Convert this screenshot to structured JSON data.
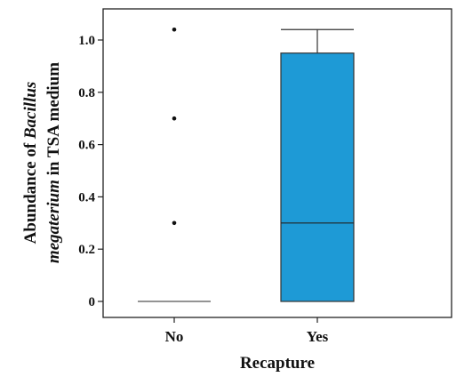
{
  "chart_data": {
    "type": "box",
    "categories": [
      "No",
      "Yes"
    ],
    "xlabel": "Recapture",
    "ylabel_line1": [
      "Abundance of ",
      "Bacillus"
    ],
    "ylabel_line2": [
      "megaterium",
      " in TSA medium"
    ],
    "ylim": [
      -0.05,
      1.1
    ],
    "yticks": [
      0,
      0.2,
      0.4,
      0.6,
      0.8,
      1.0
    ],
    "ytick_labels": [
      "0",
      "0.2",
      "0.4",
      "0.6",
      "0.8",
      "1.0"
    ],
    "series": [
      {
        "category": "No",
        "min": 0,
        "q1": 0,
        "median": 0,
        "q3": 0,
        "max": 0,
        "outliers": [
          0.3,
          0.7,
          1.04
        ]
      },
      {
        "category": "Yes",
        "min": 0,
        "q1": 0,
        "median": 0.3,
        "q3": 0.95,
        "max": 1.04,
        "outliers": []
      }
    ],
    "box_color": "#1e9ad6",
    "grid": false,
    "legend": "none"
  }
}
